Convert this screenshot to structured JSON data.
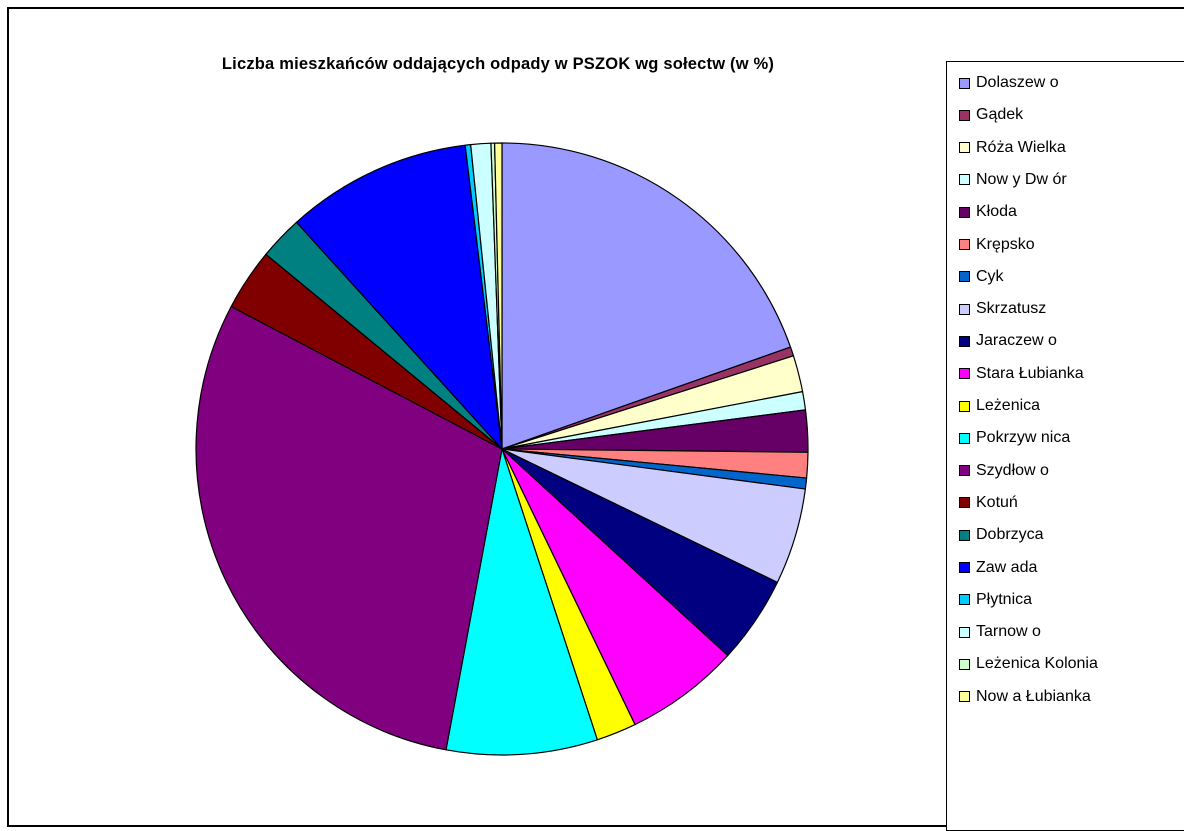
{
  "chart_data": {
    "type": "pie",
    "title": "Liczba mieszkańców oddających odpady w PSZOK wg sołectw (w %)",
    "legend_position": "right",
    "categories": [
      "Dolaszew o",
      "Gądek",
      "Róża Wielka",
      "Now y Dw ór",
      "Kłoda",
      "Krępsko",
      "Cyk",
      "Skrzatusz",
      "Jaraczew o",
      "Stara Łubianka",
      "Leżenica",
      "Pokrzyw nica",
      "Szydłow o",
      "Kotuń",
      "Dobrzyca",
      "Zaw ada",
      "Płytnica",
      "Tarnow o",
      "Leżenica Kolonia",
      "Now a Łubianka"
    ],
    "values": [
      20.4,
      0.5,
      2.0,
      1.0,
      2.3,
      1.4,
      0.6,
      5.3,
      4.8,
      6.3,
      2.2,
      8.3,
      31.0,
      3.4,
      2.4,
      10.2,
      0.3,
      1.1,
      0.2,
      0.4
    ],
    "colors": [
      "#9999FF",
      "#993366",
      "#FFFFCC",
      "#CCFFFF",
      "#660066",
      "#FF8080",
      "#0066CC",
      "#CCCCFF",
      "#000080",
      "#FF00FF",
      "#FFFF00",
      "#00FFFF",
      "#800080",
      "#800000",
      "#008080",
      "#0000FF",
      "#00CCFF",
      "#CCFFFF",
      "#CCFFCC",
      "#FFFF99"
    ]
  }
}
